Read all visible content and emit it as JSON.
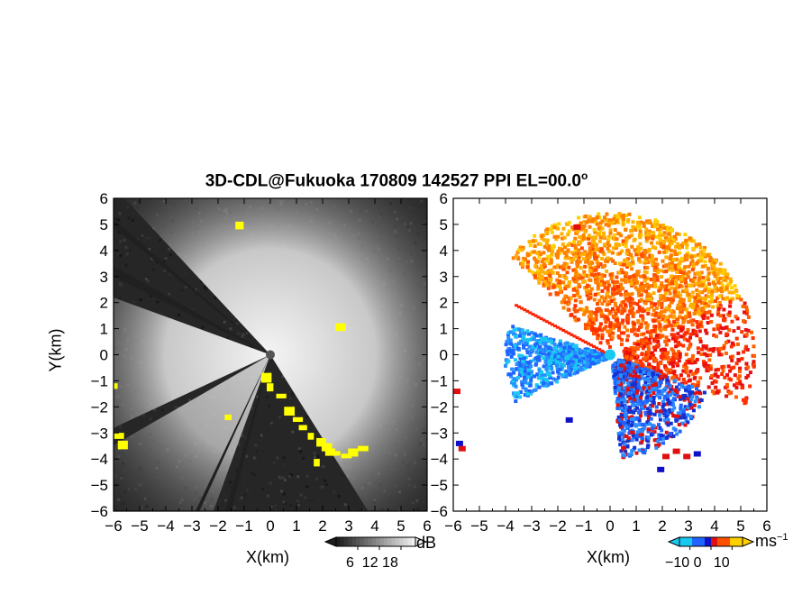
{
  "title": "3D-CDL@Fukuoka 170809 142527 PPI EL=00.0",
  "title_degree_sign": "o",
  "chart_data": [
    {
      "type": "heatmap",
      "panel": "left",
      "quantity": "backscatter",
      "xlabel": "X(km)",
      "ylabel": "Y(km)",
      "xlim": [
        -6,
        6
      ],
      "ylim": [
        -6,
        6
      ],
      "x_ticks": [
        "−6",
        "−5",
        "−4",
        "−3",
        "−2",
        "−1",
        "0",
        "1",
        "2",
        "3",
        "4",
        "5",
        "6"
      ],
      "y_ticks": [
        "6",
        "5",
        "4",
        "3",
        "2",
        "1",
        "0",
        "−1",
        "−2",
        "−3",
        "−4",
        "−5",
        "−6"
      ],
      "colorbar": {
        "unit": "dB",
        "ticks": [
          6,
          12,
          18
        ],
        "tick_labels": [
          "6",
          "12",
          "18"
        ],
        "range": [
          0,
          22
        ],
        "colors": {
          "low": "#1a1a1a",
          "high": "#f2f2f2",
          "highlight": "#ffff00"
        }
      }
    },
    {
      "type": "heatmap",
      "panel": "right",
      "quantity": "radial velocity",
      "xlabel": "X(km)",
      "xlim": [
        -6,
        6
      ],
      "ylim": [
        -6,
        6
      ],
      "x_ticks": [
        "−6",
        "−5",
        "−4",
        "−3",
        "−2",
        "−1",
        "0",
        "1",
        "2",
        "3",
        "4",
        "5",
        "6"
      ],
      "y_ticks": [
        "6",
        "5",
        "4",
        "3",
        "2",
        "1",
        "0",
        "−1",
        "−2",
        "−3",
        "−4",
        "−5",
        "−6"
      ],
      "colorbar": {
        "unit_base": "ms",
        "unit_exp": "−1",
        "ticks": [
          -10,
          0,
          10
        ],
        "tick_labels": [
          "−10",
          "0",
          "10"
        ],
        "range": [
          -15,
          15
        ],
        "colors": {
          "neg_strong": "#19c8f0",
          "neg": "#1e64ff",
          "zero_neg": "#1010c8",
          "zero_pos": "#e01010",
          "pos": "#ff5000",
          "pos_strong": "#ffd000"
        }
      }
    }
  ]
}
